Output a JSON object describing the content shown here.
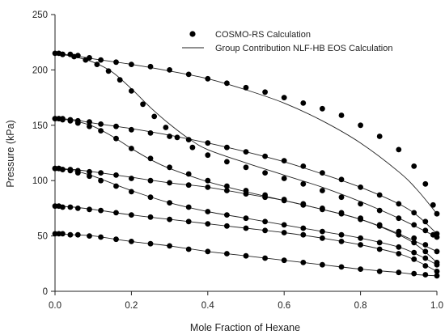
{
  "chart_data": {
    "type": "scatter",
    "xlabel": "Mole Fraction of Hexane",
    "ylabel": "Pressure (kPa)",
    "xlim": [
      0,
      1
    ],
    "ylim": [
      0,
      250
    ],
    "x_ticks": [
      "0.0",
      "0.2",
      "0.4",
      "0.6",
      "0.8",
      "1.0"
    ],
    "y_ticks": [
      "0",
      "50",
      "100",
      "150",
      "200",
      "250"
    ],
    "grid": false,
    "legend_position": "top-right",
    "legend": {
      "points_label": "COSMO-RS Calculation",
      "line_label": "Group Contribution NLF-HB EOS Calculation"
    },
    "series": [
      {
        "name": "COSMO-RS Calculation",
        "kind": "points",
        "groups": [
          {
            "x": [
              0.0,
              0.01,
              0.02,
              0.04,
              0.06,
              0.09,
              0.12,
              0.16,
              0.2,
              0.25,
              0.3,
              0.35,
              0.4,
              0.45,
              0.5,
              0.55,
              0.6,
              0.65,
              0.7,
              0.75,
              0.8,
              0.85,
              0.9,
              0.94,
              0.97,
              0.99,
              1.0
            ],
            "y": [
              215,
              215,
              214,
              214,
              213,
              211,
              209,
              207,
              205,
              203,
              200,
              196,
              192,
              188,
              184,
              180,
              175,
              170,
              165,
              159,
              150,
              140,
              128,
              113,
              97,
              78,
              70
            ]
          },
          {
            "x": [
              0.02,
              0.05,
              0.08,
              0.11,
              0.14,
              0.17,
              0.2,
              0.23,
              0.26,
              0.29,
              0.32,
              0.36,
              0.4,
              0.45,
              0.5,
              0.55,
              0.6,
              0.65,
              0.7,
              0.75,
              0.8,
              0.85,
              0.9,
              0.94,
              0.97,
              0.99,
              1.0
            ],
            "y": [
              214,
              212,
              209,
              205,
              199,
              191,
              181,
              169,
              158,
              148,
              139,
              130,
              123,
              117,
              112,
              107,
              102,
              97,
              91,
              85,
              79,
              73,
              66,
              60,
              55,
              51,
              49
            ]
          },
          {
            "x": [
              0.0,
              0.01,
              0.02,
              0.04,
              0.06,
              0.09,
              0.12,
              0.16,
              0.2,
              0.25,
              0.3,
              0.35,
              0.4,
              0.45,
              0.5,
              0.55,
              0.6,
              0.65,
              0.7,
              0.75,
              0.8,
              0.85,
              0.9,
              0.94,
              0.97,
              1.0
            ],
            "y": [
              156,
              156,
              156,
              155,
              154,
              153,
              151,
              149,
              146,
              143,
              140,
              137,
              134,
              130,
              126,
              122,
              118,
              113,
              107,
              101,
              94,
              87,
              79,
              71,
              63,
              52
            ]
          },
          {
            "x": [
              0.0,
              0.01,
              0.02,
              0.04,
              0.06,
              0.09,
              0.12,
              0.16,
              0.2,
              0.25,
              0.3,
              0.35,
              0.4,
              0.45,
              0.5,
              0.55,
              0.6,
              0.65,
              0.7,
              0.75,
              0.8,
              0.85,
              0.9,
              0.94,
              0.97,
              1.0
            ],
            "y": [
              156,
              156,
              155,
              154,
              152,
              149,
              145,
              138,
              129,
              120,
              112,
              106,
              100,
              95,
              91,
              87,
              83,
              79,
              75,
              71,
              66,
              60,
              54,
              48,
              42,
              36
            ]
          },
          {
            "x": [
              0.0,
              0.01,
              0.02,
              0.04,
              0.06,
              0.09,
              0.12,
              0.16,
              0.2,
              0.25,
              0.3,
              0.35,
              0.4,
              0.45,
              0.5,
              0.55,
              0.6,
              0.65,
              0.7,
              0.75,
              0.8,
              0.85,
              0.9,
              0.94,
              0.97,
              1.0
            ],
            "y": [
              111,
              111,
              110,
              110,
              109,
              108,
              107,
              105,
              102,
              100,
              98,
              96,
              94,
              91,
              88,
              85,
              82,
              78,
              74,
              70,
              65,
              59,
              51,
              44,
              36,
              26
            ]
          },
          {
            "x": [
              0.0,
              0.01,
              0.02,
              0.04,
              0.06,
              0.09,
              0.12,
              0.16,
              0.2,
              0.25,
              0.3,
              0.35,
              0.4,
              0.45,
              0.5,
              0.55,
              0.6,
              0.65,
              0.7,
              0.75,
              0.8,
              0.85,
              0.9,
              0.94,
              0.97,
              1.0
            ],
            "y": [
              111,
              111,
              110,
              109,
              107,
              104,
              100,
              95,
              90,
              85,
              80,
              76,
              72,
              69,
              66,
              63,
              60,
              57,
              54,
              51,
              48,
              44,
              40,
              35,
              30,
              24
            ]
          },
          {
            "x": [
              0.0,
              0.01,
              0.02,
              0.04,
              0.06,
              0.09,
              0.12,
              0.16,
              0.2,
              0.25,
              0.3,
              0.35,
              0.4,
              0.45,
              0.5,
              0.55,
              0.6,
              0.65,
              0.7,
              0.75,
              0.8,
              0.85,
              0.9,
              0.94,
              0.97,
              1.0
            ],
            "y": [
              77,
              77,
              76,
              76,
              75,
              74,
              73,
              71,
              69,
              67,
              65,
              63,
              61,
              59,
              57,
              55,
              53,
              51,
              48,
              45,
              42,
              38,
              34,
              29,
              23,
              18
            ]
          },
          {
            "x": [
              0.0,
              0.01,
              0.02,
              0.04,
              0.06,
              0.09,
              0.12,
              0.16,
              0.2,
              0.25,
              0.3,
              0.35,
              0.4,
              0.45,
              0.5,
              0.55,
              0.6,
              0.65,
              0.7,
              0.75,
              0.8,
              0.85,
              0.9,
              0.94,
              0.97,
              1.0
            ],
            "y": [
              52,
              52,
              52,
              51,
              51,
              50,
              49,
              47,
              45,
              43,
              41,
              38,
              36,
              34,
              32,
              30,
              28,
              26,
              24,
              22,
              20,
              18,
              17,
              16,
              15,
              14
            ]
          }
        ]
      },
      {
        "name": "Group Contribution NLF-HB EOS Calculation",
        "kind": "lines",
        "groups": [
          {
            "x": [
              0.0,
              0.05,
              0.1,
              0.2,
              0.3,
              0.4,
              0.5,
              0.6,
              0.7,
              0.8,
              0.9,
              0.95,
              1.0
            ],
            "y": [
              215,
              213,
              210,
              205,
              199,
              192,
              182,
              170,
              154,
              134,
              108,
              91,
              70
            ]
          },
          {
            "x": [
              0.0,
              0.05,
              0.1,
              0.15,
              0.2,
              0.25,
              0.3,
              0.35,
              0.4,
              0.5,
              0.6,
              0.7,
              0.8,
              0.9,
              1.0
            ],
            "y": [
              215,
              212,
              207,
              198,
              183,
              166,
              151,
              138,
              128,
              116,
              105,
              94,
              81,
              66,
              49
            ]
          },
          {
            "x": [
              0.0,
              0.05,
              0.1,
              0.2,
              0.3,
              0.4,
              0.5,
              0.6,
              0.7,
              0.8,
              0.9,
              0.95,
              1.0
            ],
            "y": [
              156,
              155,
              152,
              147,
              141,
              134,
              126,
              117,
              106,
              94,
              79,
              68,
              52
            ]
          },
          {
            "x": [
              0.0,
              0.05,
              0.1,
              0.15,
              0.2,
              0.25,
              0.3,
              0.4,
              0.5,
              0.6,
              0.7,
              0.8,
              0.9,
              1.0
            ],
            "y": [
              156,
              154,
              149,
              140,
              129,
              119,
              111,
              99,
              90,
              82,
              74,
              65,
              52,
              36
            ]
          },
          {
            "x": [
              0.0,
              0.05,
              0.1,
              0.2,
              0.3,
              0.4,
              0.5,
              0.6,
              0.7,
              0.8,
              0.9,
              0.95,
              1.0
            ],
            "y": [
              111,
              110,
              108,
              103,
              98,
              94,
              88,
              82,
              74,
              65,
              51,
              41,
              26
            ]
          },
          {
            "x": [
              0.0,
              0.05,
              0.1,
              0.2,
              0.3,
              0.4,
              0.5,
              0.6,
              0.7,
              0.8,
              0.9,
              0.95,
              1.0
            ],
            "y": [
              111,
              109,
              104,
              91,
              80,
              72,
              66,
              60,
              54,
              48,
              40,
              33,
              24
            ]
          },
          {
            "x": [
              0.0,
              0.05,
              0.1,
              0.2,
              0.3,
              0.4,
              0.5,
              0.6,
              0.7,
              0.8,
              0.9,
              0.95,
              1.0
            ],
            "y": [
              77,
              76,
              74,
              69,
              65,
              61,
              57,
              53,
              48,
              42,
              34,
              27,
              18
            ]
          },
          {
            "x": [
              0.0,
              0.05,
              0.1,
              0.2,
              0.3,
              0.4,
              0.5,
              0.6,
              0.7,
              0.8,
              0.9,
              0.95,
              1.0
            ],
            "y": [
              52,
              51,
              50,
              45,
              41,
              36,
              32,
              28,
              24,
              20,
              17,
              15,
              14
            ]
          }
        ]
      }
    ]
  }
}
